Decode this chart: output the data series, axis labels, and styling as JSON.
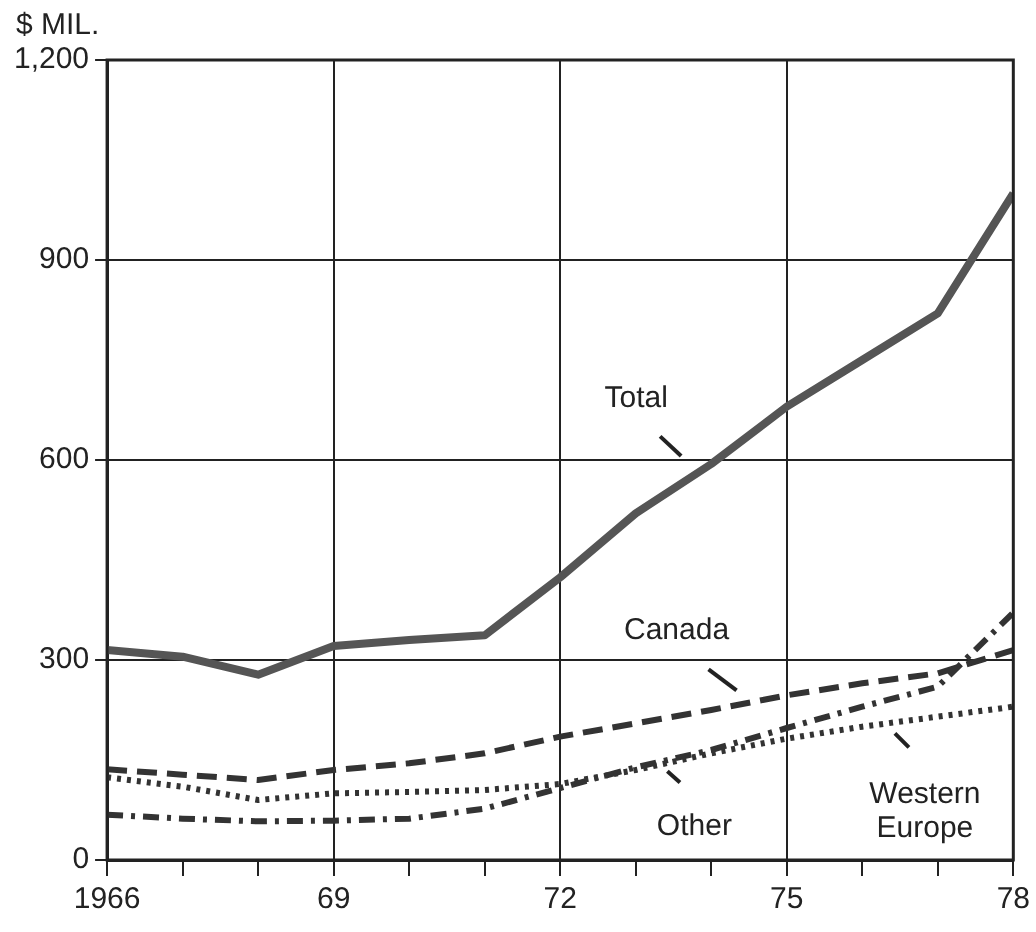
{
  "chart_data": {
    "type": "line",
    "ylabel": "$ MIL.",
    "x": [
      1966,
      1967,
      1968,
      1969,
      1970,
      1971,
      1972,
      1973,
      1974,
      1975,
      1976,
      1977,
      1978
    ],
    "series": [
      {
        "color": "#555555",
        "line_style": "solid",
        "values": [
          315,
          305,
          278,
          321,
          330,
          337,
          424,
          520,
          594,
          680,
          750,
          820,
          1000
        ]
      },
      {
        "color": "#333333",
        "line_style": "dashed",
        "values": [
          136,
          128,
          120,
          135,
          145,
          160,
          185,
          205,
          225,
          247,
          265,
          280,
          315
        ]
      },
      {
        "color": "#333333",
        "line_style": "dotted",
        "values": [
          124,
          110,
          90,
          100,
          102,
          105,
          114,
          135,
          160,
          182,
          200,
          215,
          230
        ]
      },
      {
        "color": "#333333",
        "line_style": "dashdot",
        "values": [
          68,
          62,
          58,
          59,
          62,
          77,
          108,
          139,
          165,
          198,
          230,
          260,
          371
        ]
      }
    ],
    "xlim": [
      1966,
      1978
    ],
    "xticks": [
      1966,
      {
        "value": 1967,
        "label": null
      },
      {
        "value": 1968,
        "label": null
      },
      {
        "value": 1969,
        "label": "69"
      },
      {
        "value": 1970,
        "label": null
      },
      {
        "value": 1971,
        "label": null
      },
      {
        "value": 1972,
        "label": "72"
      },
      {
        "value": 1973,
        "label": null
      },
      {
        "value": 1974,
        "label": null
      },
      {
        "value": 1975,
        "label": "75"
      },
      {
        "value": 1976,
        "label": null
      },
      {
        "value": 1977,
        "label": null
      },
      {
        "value": 1978,
        "label": "78"
      }
    ],
    "ylim": [
      0,
      1200
    ],
    "yticks": [
      0,
      300,
      600,
      900,
      {
        "value": 1200,
        "label": "1,200"
      }
    ],
    "grid": true,
    "legend": false,
    "marker": "none",
    "annotations": [
      {
        "text": "Total",
        "x": 1973.8,
        "y": 585
      },
      {
        "text": "Canada",
        "x": 1974.6,
        "y": 232
      },
      {
        "text": "Other",
        "x": 1973.3,
        "y": 145
      },
      {
        "text": "Western\nEurope",
        "x": 1976.3,
        "y": 205
      }
    ]
  }
}
